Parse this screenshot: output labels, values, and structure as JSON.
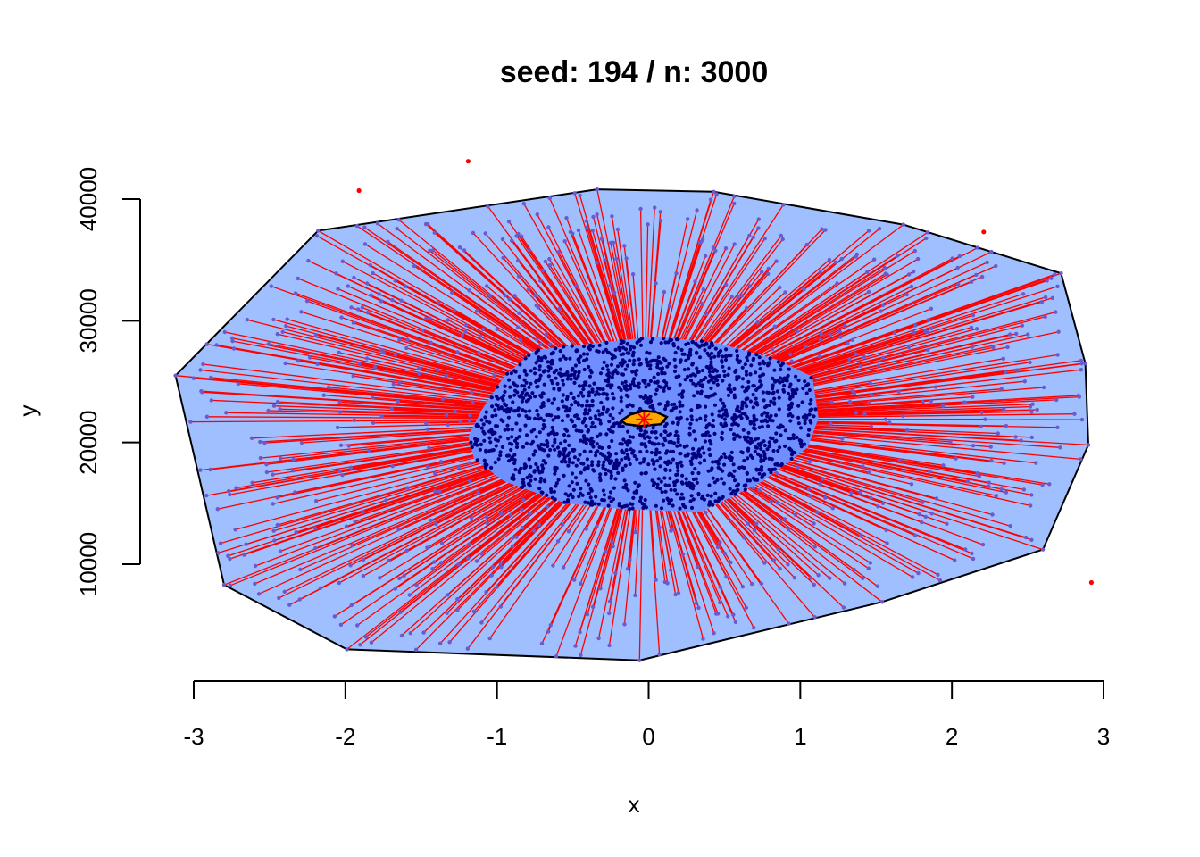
{
  "chart_data": {
    "type": "scatter",
    "title": "seed:  194 / n:  3000",
    "xlabel": "x",
    "ylabel": "y",
    "xlim": [
      -3.2,
      2.95
    ],
    "ylim": [
      1300,
      44500
    ],
    "x_ticks": [
      -3,
      -2,
      -1,
      0,
      1,
      2,
      3
    ],
    "x_tick_labels": [
      "-3",
      "-2",
      "-1",
      "0",
      "1",
      "2",
      "3"
    ],
    "y_ticks": [
      10000,
      20000,
      30000,
      40000
    ],
    "y_tick_labels": [
      "10000",
      "20000",
      "30000",
      "40000"
    ],
    "n": 3000,
    "grid": false,
    "legend": "none",
    "center": {
      "x": -0.03,
      "y": 21900
    },
    "outer_hull": [
      [
        -2.18,
        37400
      ],
      [
        -0.34,
        40800
      ],
      [
        0.43,
        40600
      ],
      [
        1.68,
        37900
      ],
      [
        2.72,
        33900
      ],
      [
        2.88,
        26500
      ],
      [
        2.9,
        19800
      ],
      [
        2.6,
        11200
      ],
      [
        1.54,
        6900
      ],
      [
        -0.06,
        2100
      ],
      [
        -1.99,
        3000
      ],
      [
        -2.8,
        8300
      ],
      [
        -3.12,
        25500
      ]
    ],
    "inner_hull": [
      [
        -0.75,
        27600
      ],
      [
        -0.25,
        28300
      ],
      [
        0.05,
        28700
      ],
      [
        0.45,
        28200
      ],
      [
        0.85,
        26800
      ],
      [
        1.08,
        25400
      ],
      [
        1.12,
        22000
      ],
      [
        1.05,
        19600
      ],
      [
        0.75,
        16800
      ],
      [
        0.35,
        14300
      ],
      [
        -0.15,
        14500
      ],
      [
        -0.55,
        15000
      ],
      [
        -0.95,
        16800
      ],
      [
        -1.15,
        18600
      ],
      [
        -1.19,
        20500
      ],
      [
        -1.1,
        22700
      ],
      [
        -0.95,
        25500
      ]
    ],
    "core_hull": [
      [
        -0.18,
        21800
      ],
      [
        -0.12,
        22300
      ],
      [
        -0.03,
        22600
      ],
      [
        0.05,
        22500
      ],
      [
        0.12,
        22100
      ],
      [
        0.08,
        21500
      ],
      [
        -0.05,
        21350
      ],
      [
        -0.15,
        21500
      ]
    ],
    "outliers": [
      {
        "x": -1.91,
        "y": 40700
      },
      {
        "x": -1.19,
        "y": 43100
      },
      {
        "x": 2.21,
        "y": 37300
      },
      {
        "x": 2.92,
        "y": 8500
      }
    ],
    "colors": {
      "outer_fill": "#9fbfff",
      "inner_fill": "#6f8fff",
      "inner_points": "#000080",
      "spokes": "#ff0000",
      "spoke_ends": "#6a5acd",
      "core_fill": "#ffa500",
      "outliers": "#ff0000",
      "hull_stroke": "#000000"
    }
  }
}
